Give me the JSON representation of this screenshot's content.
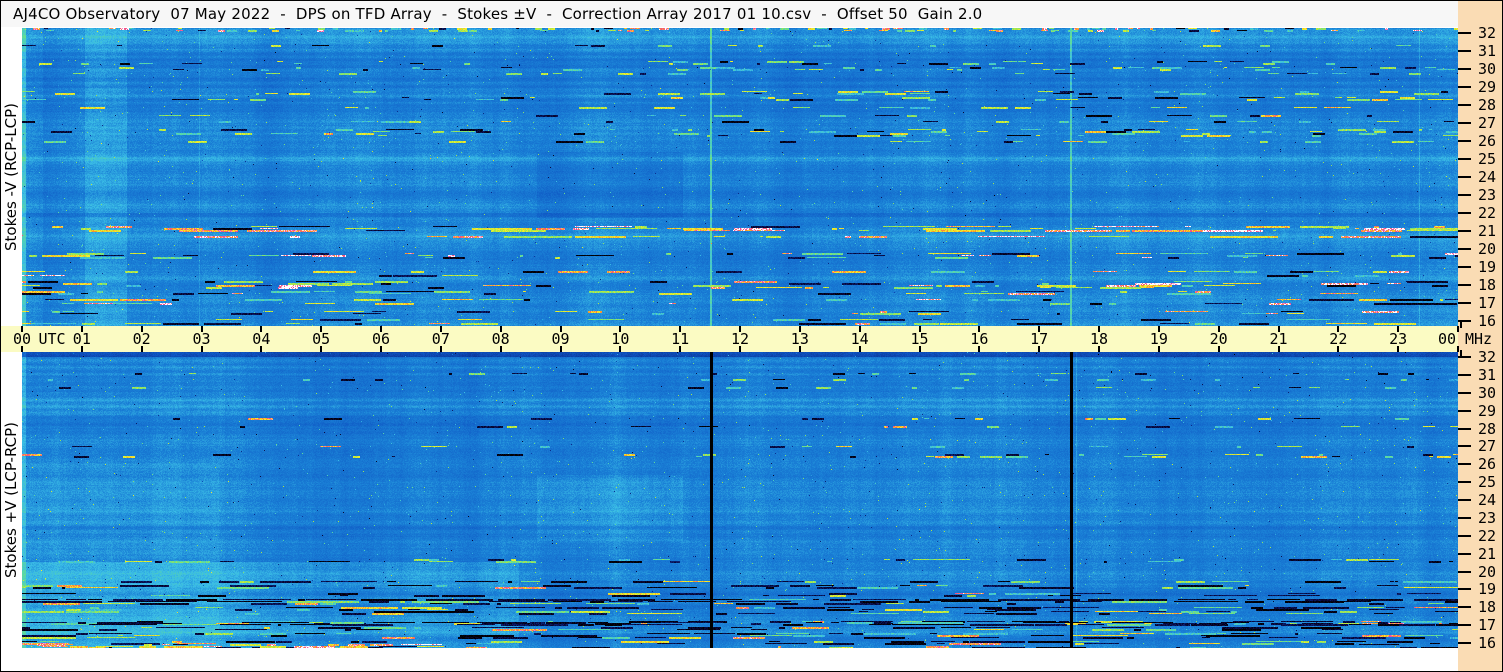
{
  "title": "AJ4CO Observatory  07 May 2022  -  DPS on TFD Array  -  Stokes ±V  -  Correction Array 2017 01 10.csv  -  Offset 50  Gain 2.0",
  "title_parts": {
    "observatory": "AJ4CO Observatory",
    "date": "07 May 2022",
    "instrument": "DPS on TFD Array",
    "stokes": "Stokes ±V",
    "correction_file": "Correction Array 2017 01 10.csv",
    "offset": "Offset 50",
    "gain": "Gain 2.0"
  },
  "colors": {
    "frame_border": "#000000",
    "title_bar_bg": "#f7f7f7",
    "time_axis_bg": "#fbfbc3",
    "freq_scale_bg": "#fadcb4",
    "axis_text": "#000000",
    "spectrogram_base_blue": "#1a80d6"
  },
  "panels": [
    {
      "label": "Stokes -V (RCP-LCP)"
    },
    {
      "label": "Stokes +V (LCP-RCP)"
    }
  ],
  "time_axis": {
    "utc_label": "UTC",
    "labels": [
      "00",
      "01",
      "02",
      "03",
      "04",
      "05",
      "06",
      "07",
      "08",
      "09",
      "10",
      "11",
      "12",
      "13",
      "14",
      "15",
      "16",
      "17",
      "18",
      "19",
      "20",
      "21",
      "22",
      "23",
      "00"
    ]
  },
  "freq_axis": {
    "unit": "MHz",
    "ticks": [
      "32",
      "31",
      "30",
      "29",
      "28",
      "27",
      "26",
      "25",
      "24",
      "23",
      "22",
      "21",
      "20",
      "19",
      "18",
      "17",
      "16"
    ]
  },
  "chart_data": {
    "type": "heatmap",
    "title": "AJ4CO Observatory dynamic power spectrum (DPS), 07 May 2022, TFD Array, Stokes ±V",
    "x_axis": {
      "label": "UTC",
      "min_hours": 0,
      "max_hours": 24,
      "tick_interval_hours": 1
    },
    "y_axis": {
      "label": "MHz",
      "min": 16,
      "max": 32,
      "tick_interval": 1,
      "direction": "increasing upward"
    },
    "panels": [
      {
        "name": "Stokes -V (RCP-LCP)",
        "position": "top"
      },
      {
        "name": "Stokes +V (LCP-RCP)",
        "position": "bottom"
      }
    ],
    "annotations": [
      "Bright cyan vertical calibration lines near 11:30 and 17:30 UTC in the Stokes -V panel",
      "Black vertical dropout lines near 11:30 and 17:30 UTC in the Stokes +V panel",
      "Strong broadband colorful RFI streaks below ~20 MHz throughout the day",
      "Persistent bright interference band near 21 MHz in the Stokes -V panel",
      "Scattered RFI speckle between ~26 and 28.5 MHz, heavier after ~12:00 UTC",
      "Slightly lighter cyan region in lower-left of Stokes +V panel before ~08:00 UTC",
      "Faint rectangular gain-step patch between ~08:40 and 11:00 UTC, 22-25 MHz, in both panels"
    ],
    "render": {
      "shared": {
        "fmin": 16,
        "fmax": 32,
        "colormap": [
          [
            0.0,
            0,
            0,
            0
          ],
          [
            0.1,
            8,
            8,
            60
          ],
          [
            0.22,
            10,
            45,
            140
          ],
          [
            0.36,
            14,
            85,
            195
          ],
          [
            0.5,
            26,
            128,
            214
          ],
          [
            0.6,
            58,
            188,
            230
          ],
          [
            0.7,
            96,
            222,
            150
          ],
          [
            0.79,
            180,
            232,
            62
          ],
          [
            0.86,
            248,
            240,
            46
          ],
          [
            0.92,
            250,
            150,
            40
          ],
          [
            0.955,
            238,
            70,
            150
          ],
          [
            1.0,
            255,
            255,
            255
          ]
        ]
      },
      "panels": [
        {
          "seed": 20220507,
          "base": 0.502,
          "noise": 0.05,
          "banding": 0.016,
          "speckle": 0.004,
          "col_features": [
            {
              "h0": 1.05,
              "h1": 1.75,
              "delta": 0.05
            },
            {
              "h0": 0.0,
              "h1": 0.35,
              "delta": 0.03
            },
            {
              "h0": 0.0,
              "h1": 0.06,
              "delta": 0.1
            }
          ],
          "vlines": [
            {
              "h": 11.5,
              "w": 2,
              "delta": 0.17
            },
            {
              "h": 17.52,
              "w": 2,
              "delta": 0.15
            },
            {
              "h": 23.35,
              "w": 1,
              "delta": 0.06
            },
            {
              "h": 2.95,
              "w": 1,
              "delta": 0.04
            }
          ],
          "row_features": [
            {
              "f0": 21.9,
              "f1": 22.05,
              "delta": -0.05
            },
            {
              "f0": 24.9,
              "f1": 25.05,
              "delta": 0.04
            }
          ],
          "patches": [
            {
              "h0": 8.6,
              "h1": 11.05,
              "f0": 21.8,
              "f1": 25.3,
              "delta": -0.035
            },
            {
              "h0": 13.2,
              "h1": 24,
              "f0": 16,
              "f1": 21.5,
              "delta": 0.012
            }
          ],
          "rfi": [
            {
              "f0": 16.0,
              "f1": 19.9,
              "rowProb": 0.55,
              "onProb": 0.42,
              "maxRun": 46,
              "brightMin": 0.6,
              "brightSpan": 0.4,
              "darkFrac": 0.3,
              "xw": [
                [
                  0,
                  0.31,
                  1.0
                ],
                [
                  0.31,
                  0.52,
                  0.45
                ],
                [
                  0.52,
                  1,
                  0.85
                ]
              ]
            },
            {
              "f0": 20.55,
              "f1": 21.35,
              "rowProb": 0.5,
              "onProb": 0.5,
              "maxRun": 70,
              "brightMin": 0.75,
              "brightSpan": 0.25,
              "darkFrac": 0.08
            },
            {
              "f0": 25.9,
              "f1": 28.6,
              "rowProb": 0.38,
              "onProb": 0.3,
              "maxRun": 26,
              "brightMin": 0.6,
              "brightSpan": 0.3,
              "darkFrac": 0.25,
              "xw": [
                [
                  0,
                  0.5,
                  0.55
                ],
                [
                  0.5,
                  1,
                  1.0
                ]
              ]
            },
            {
              "f0": 29.3,
              "f1": 31.6,
              "rowProb": 0.22,
              "onProb": 0.22,
              "maxRun": 18,
              "brightMin": 0.58,
              "brightSpan": 0.25,
              "darkFrac": 0.3
            },
            {
              "f0": 31.82,
              "f1": 32,
              "rowProb": 1,
              "onProb": 0.5,
              "maxRun": 8,
              "brightMin": 0.6,
              "brightSpan": 0.4,
              "darkFrac": 0.15
            }
          ]
        },
        {
          "seed": 19731003,
          "base": 0.492,
          "noise": 0.05,
          "banding": 0.014,
          "speckle": 0.0045,
          "col_features": [
            {
              "h0": 0,
              "h1": 3.4,
              "delta": 0.015
            },
            {
              "h0": 0.0,
              "h1": 0.06,
              "delta": 0.08
            }
          ],
          "vlines": [
            {
              "h": 11.5,
              "w": 3,
              "color": "#000000"
            },
            {
              "h": 17.52,
              "w": 3,
              "color": "#000000"
            },
            {
              "h": 17.62,
              "w": 1,
              "delta": 0.06
            }
          ],
          "row_features": [
            {
              "f0": 31.75,
              "f1": 32,
              "delta": -0.18
            },
            {
              "f0": 22.4,
              "f1": 22.55,
              "delta": -0.04
            }
          ],
          "patches": [
            {
              "h0": 8.6,
              "h1": 11.05,
              "f0": 21.8,
              "f1": 25.3,
              "delta": 0.035
            },
            {
              "h0": 0,
              "h1": 8.3,
              "f0": 16,
              "f1": 20.6,
              "delta": 0.05
            },
            {
              "h0": 0,
              "h1": 3.3,
              "f0": 16,
              "f1": 26,
              "delta": 0.02
            }
          ],
          "rfi": [
            {
              "f0": 16.0,
              "f1": 19.6,
              "rowProb": 0.6,
              "onProb": 0.45,
              "maxRun": 55,
              "brightMin": 0.6,
              "brightSpan": 0.35,
              "darkFrac": 0.62
            },
            {
              "f0": 16.02,
              "f1": 16.18,
              "rowProb": 1,
              "onProb": 0.75,
              "maxRun": 40,
              "brightMin": 0.8,
              "brightSpan": 0.2,
              "darkFrac": 0.1,
              "xw": [
                [
                  0,
                  0.28,
                  1
                ],
                [
                  0.28,
                  1,
                  0.15
                ]
              ]
            },
            {
              "f0": 18.5,
              "f1": 18.62,
              "rowProb": 1,
              "onProb": 0.85,
              "maxRun": 80,
              "brightMin": 0.6,
              "brightSpan": 0.2,
              "darkFrac": 0.9
            },
            {
              "f0": 17.28,
              "f1": 17.4,
              "rowProb": 1,
              "onProb": 0.8,
              "maxRun": 70,
              "brightMin": 0.6,
              "brightSpan": 0.2,
              "darkFrac": 0.85
            },
            {
              "f0": 20.5,
              "f1": 21.2,
              "rowProb": 0.35,
              "onProb": 0.3,
              "maxRun": 40,
              "brightMin": 0.6,
              "brightSpan": 0.25,
              "darkFrac": 0.4
            },
            {
              "f0": 26.3,
              "f1": 28.4,
              "rowProb": 0.4,
              "onProb": 0.32,
              "maxRun": 24,
              "brightMin": 0.6,
              "brightSpan": 0.32,
              "darkFrac": 0.3,
              "xw": [
                [
                  0,
                  0.52,
                  0.25
                ],
                [
                  0.52,
                  1,
                  1.0
                ]
              ]
            },
            {
              "f0": 29.2,
              "f1": 31.5,
              "rowProb": 0.15,
              "onProb": 0.18,
              "maxRun": 14,
              "brightMin": 0.56,
              "brightSpan": 0.2,
              "darkFrac": 0.5
            }
          ]
        }
      ]
    }
  }
}
